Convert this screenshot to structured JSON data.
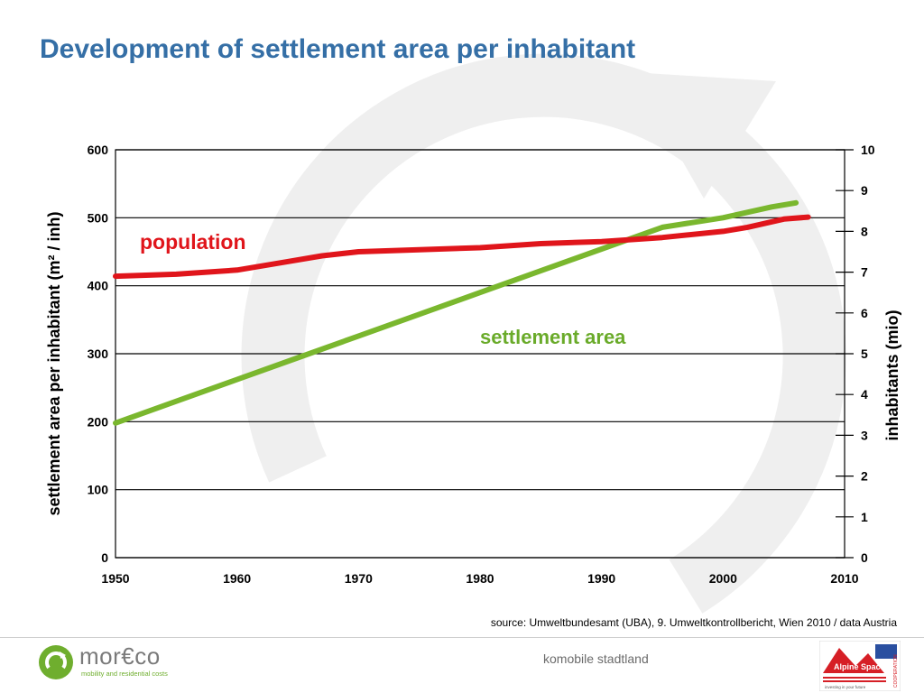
{
  "slide": {
    "title": "Development of settlement area per inhabitant",
    "source": "source: Umweltbundesamt (UBA), 9. Umweltkontrollbericht, Wien 2010 /  data Austria",
    "footer": "komobile stadtland",
    "logo": {
      "name": "mor€co",
      "tagline": "mobility and residential costs"
    },
    "partner_logo": {
      "name": "Alpine Space",
      "tagline": "investing in your future",
      "side_text": "COOPERATION"
    }
  },
  "chart_data": {
    "type": "line",
    "xlabel": "",
    "ylabel": "settlement area per inhabitant  (m² / inh)",
    "y2label": "inhabitants  (mio)",
    "xlim": [
      1950,
      2010
    ],
    "ylim": [
      0,
      600
    ],
    "y2lim": [
      0,
      10
    ],
    "x_ticks": [
      "1950",
      "1960",
      "1970",
      "1980",
      "1990",
      "2000",
      "2010"
    ],
    "y_ticks": [
      "0",
      "100",
      "200",
      "300",
      "400",
      "500",
      "600"
    ],
    "y2_ticks": [
      "0",
      "1",
      "2",
      "3",
      "4",
      "5",
      "6",
      "7",
      "8",
      "9",
      "10"
    ],
    "grid": true,
    "series": [
      {
        "name": "settlement area",
        "axis": "left",
        "color": "#7ab72e",
        "x": [
          1950,
          1955,
          1960,
          1965,
          1970,
          1975,
          1980,
          1985,
          1990,
          1995,
          2000,
          2004,
          2006
        ],
        "y": [
          198,
          230,
          262,
          294,
          326,
          358,
          390,
          422,
          454,
          486,
          500,
          516,
          522
        ]
      },
      {
        "name": "population",
        "axis": "right",
        "color": "#e0151b",
        "x": [
          1950,
          1955,
          1960,
          1964,
          1967,
          1970,
          1975,
          1980,
          1985,
          1990,
          1995,
          2000,
          2002,
          2005,
          2007
        ],
        "y": [
          6.9,
          6.95,
          7.05,
          7.25,
          7.4,
          7.5,
          7.55,
          7.6,
          7.7,
          7.75,
          7.85,
          8.0,
          8.1,
          8.3,
          8.35
        ]
      }
    ]
  }
}
